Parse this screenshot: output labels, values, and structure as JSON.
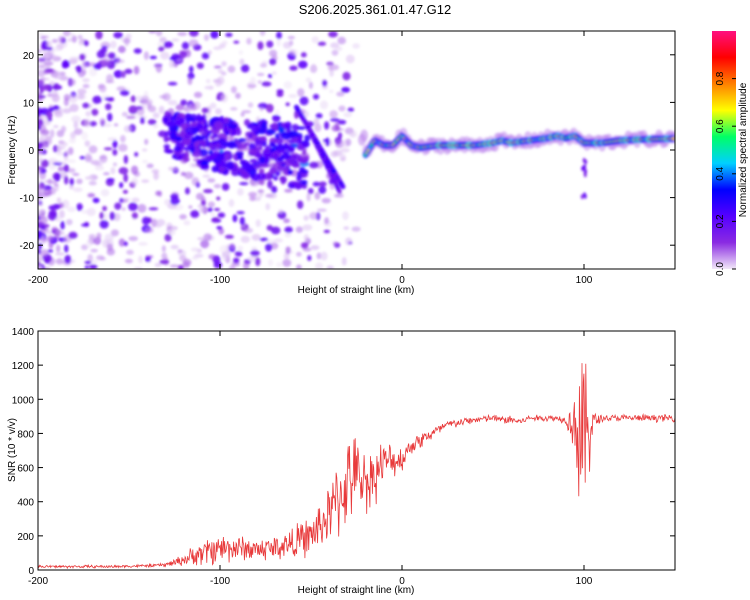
{
  "title": "S206.2025.361.01.47.G12",
  "colors": {
    "snr_line": "#e8393a",
    "colorbar": [
      "#f2e8f8",
      "#8a2be2",
      "#5500ff",
      "#0000ff",
      "#00d0ff",
      "#00ff66",
      "#ffff00",
      "#ff8000",
      "#ff0000",
      "#ff1080"
    ]
  },
  "chart_data": [
    {
      "type": "heatmap",
      "name": "spectrogram",
      "xlabel": "Height of straight line (km)",
      "ylabel": "Frequency (Hz)",
      "xlim": [
        -200,
        150
      ],
      "ylim": [
        -25,
        25
      ],
      "xticks": [
        -200,
        -100,
        0,
        100
      ],
      "xtick_labels": [
        "-200",
        "-100",
        "0",
        "100"
      ],
      "yticks": [
        -20,
        -10,
        0,
        10,
        20
      ],
      "ytick_labels": [
        "-20",
        "-10",
        "0",
        "10",
        "20"
      ],
      "ridge_x": [
        -20,
        -15,
        -10,
        -5,
        0,
        5,
        10,
        20,
        30,
        40,
        50,
        55,
        60,
        70,
        80,
        85,
        90,
        95,
        100,
        110,
        120,
        130,
        140,
        150
      ],
      "ridge_y": [
        -1,
        2,
        1,
        1,
        3,
        1,
        0.5,
        1,
        1,
        1,
        1.5,
        2,
        1.5,
        2,
        2.5,
        3,
        2.5,
        3,
        1.5,
        1.5,
        2,
        2.2,
        2.3,
        2.4
      ],
      "colorbar": {
        "label": "Normalized spectral amplitude",
        "range": [
          0,
          1
        ],
        "ticks": [
          0.0,
          0.2,
          0.4,
          0.6,
          0.8
        ],
        "tick_labels": [
          "0.0",
          "0.2",
          "0.4",
          "0.6",
          "0.8"
        ]
      }
    },
    {
      "type": "line",
      "name": "snr",
      "xlabel": "Height of straight line (km)",
      "ylabel": "SNR (10 * v/v)",
      "xlim": [
        -200,
        150
      ],
      "ylim": [
        0,
        1400
      ],
      "xticks": [
        -200,
        -100,
        0,
        100
      ],
      "xtick_labels": [
        "-200",
        "-100",
        "0",
        "100"
      ],
      "yticks": [
        0,
        200,
        400,
        600,
        800,
        1000,
        1200,
        1400
      ],
      "ytick_labels": [
        "0",
        "200",
        "400",
        "600",
        "800",
        "1000",
        "1200",
        "1400"
      ],
      "x": [
        -200,
        -180,
        -160,
        -140,
        -130,
        -120,
        -110,
        -100,
        -90,
        -80,
        -70,
        -60,
        -50,
        -45,
        -40,
        -35,
        -30,
        -25,
        -20,
        -15,
        -10,
        -5,
        0,
        5,
        10,
        15,
        20,
        25,
        30,
        40,
        50,
        55,
        60,
        65,
        70,
        80,
        85,
        90,
        95,
        97,
        100,
        102,
        105,
        110,
        120,
        130,
        140,
        150
      ],
      "y": [
        20,
        20,
        20,
        25,
        30,
        60,
        100,
        130,
        130,
        120,
        130,
        160,
        200,
        260,
        320,
        420,
        520,
        560,
        520,
        560,
        630,
        640,
        650,
        730,
        760,
        790,
        820,
        850,
        860,
        880,
        890,
        880,
        880,
        870,
        890,
        890,
        890,
        880,
        860,
        820,
        720,
        820,
        870,
        890,
        890,
        890,
        890,
        890
      ],
      "spread": [
        10,
        10,
        10,
        10,
        15,
        40,
        90,
        110,
        90,
        80,
        90,
        110,
        140,
        170,
        200,
        280,
        300,
        260,
        220,
        200,
        150,
        110,
        90,
        60,
        60,
        50,
        40,
        35,
        30,
        25,
        25,
        25,
        40,
        25,
        20,
        25,
        25,
        25,
        220,
        600,
        650,
        450,
        80,
        25,
        25,
        25,
        25,
        25
      ]
    }
  ]
}
